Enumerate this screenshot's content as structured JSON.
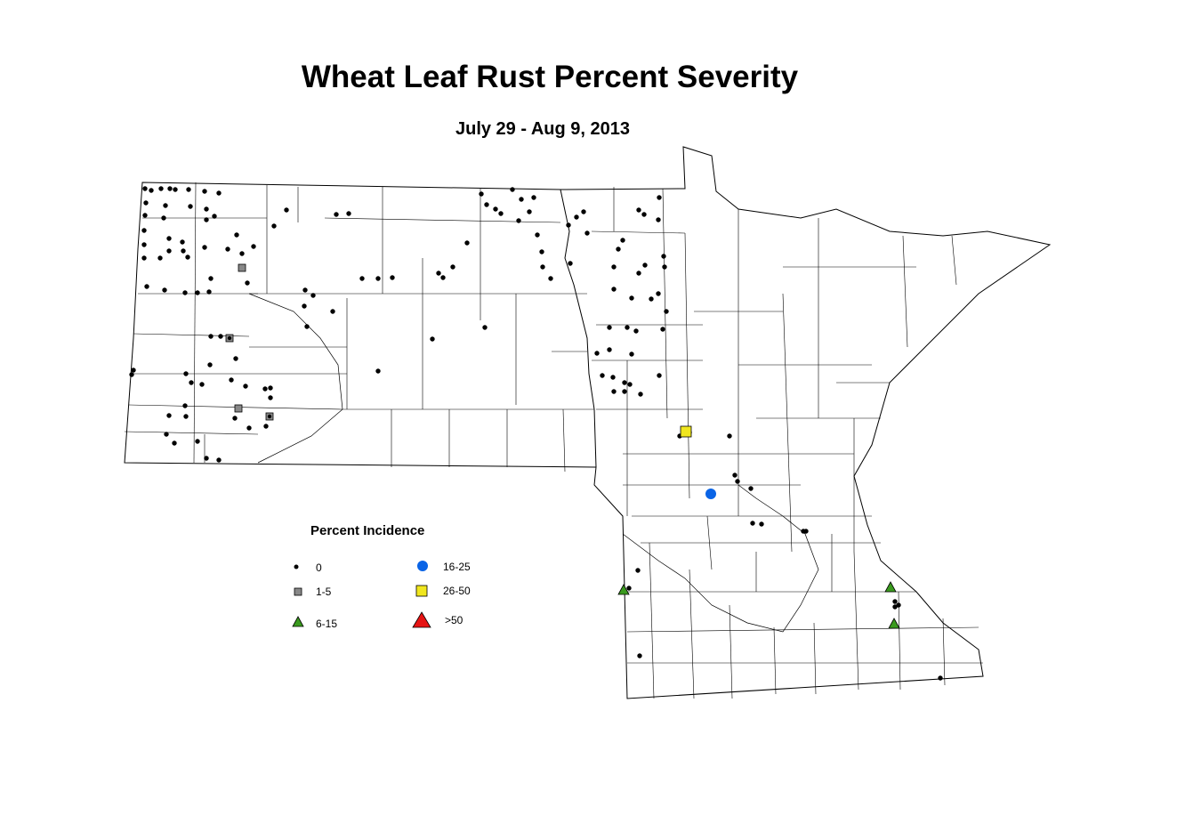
{
  "title": "Wheat Leaf Rust Percent Severity",
  "subtitle": "July 29 - Aug 9, 2013",
  "legend": {
    "title": "Percent Incidence",
    "items": [
      {
        "label": "0"
      },
      {
        "label": "1-5"
      },
      {
        "label": "6-15"
      },
      {
        "label": "16-25"
      },
      {
        "label": "26-50"
      },
      {
        "label": ">50"
      }
    ]
  }
}
